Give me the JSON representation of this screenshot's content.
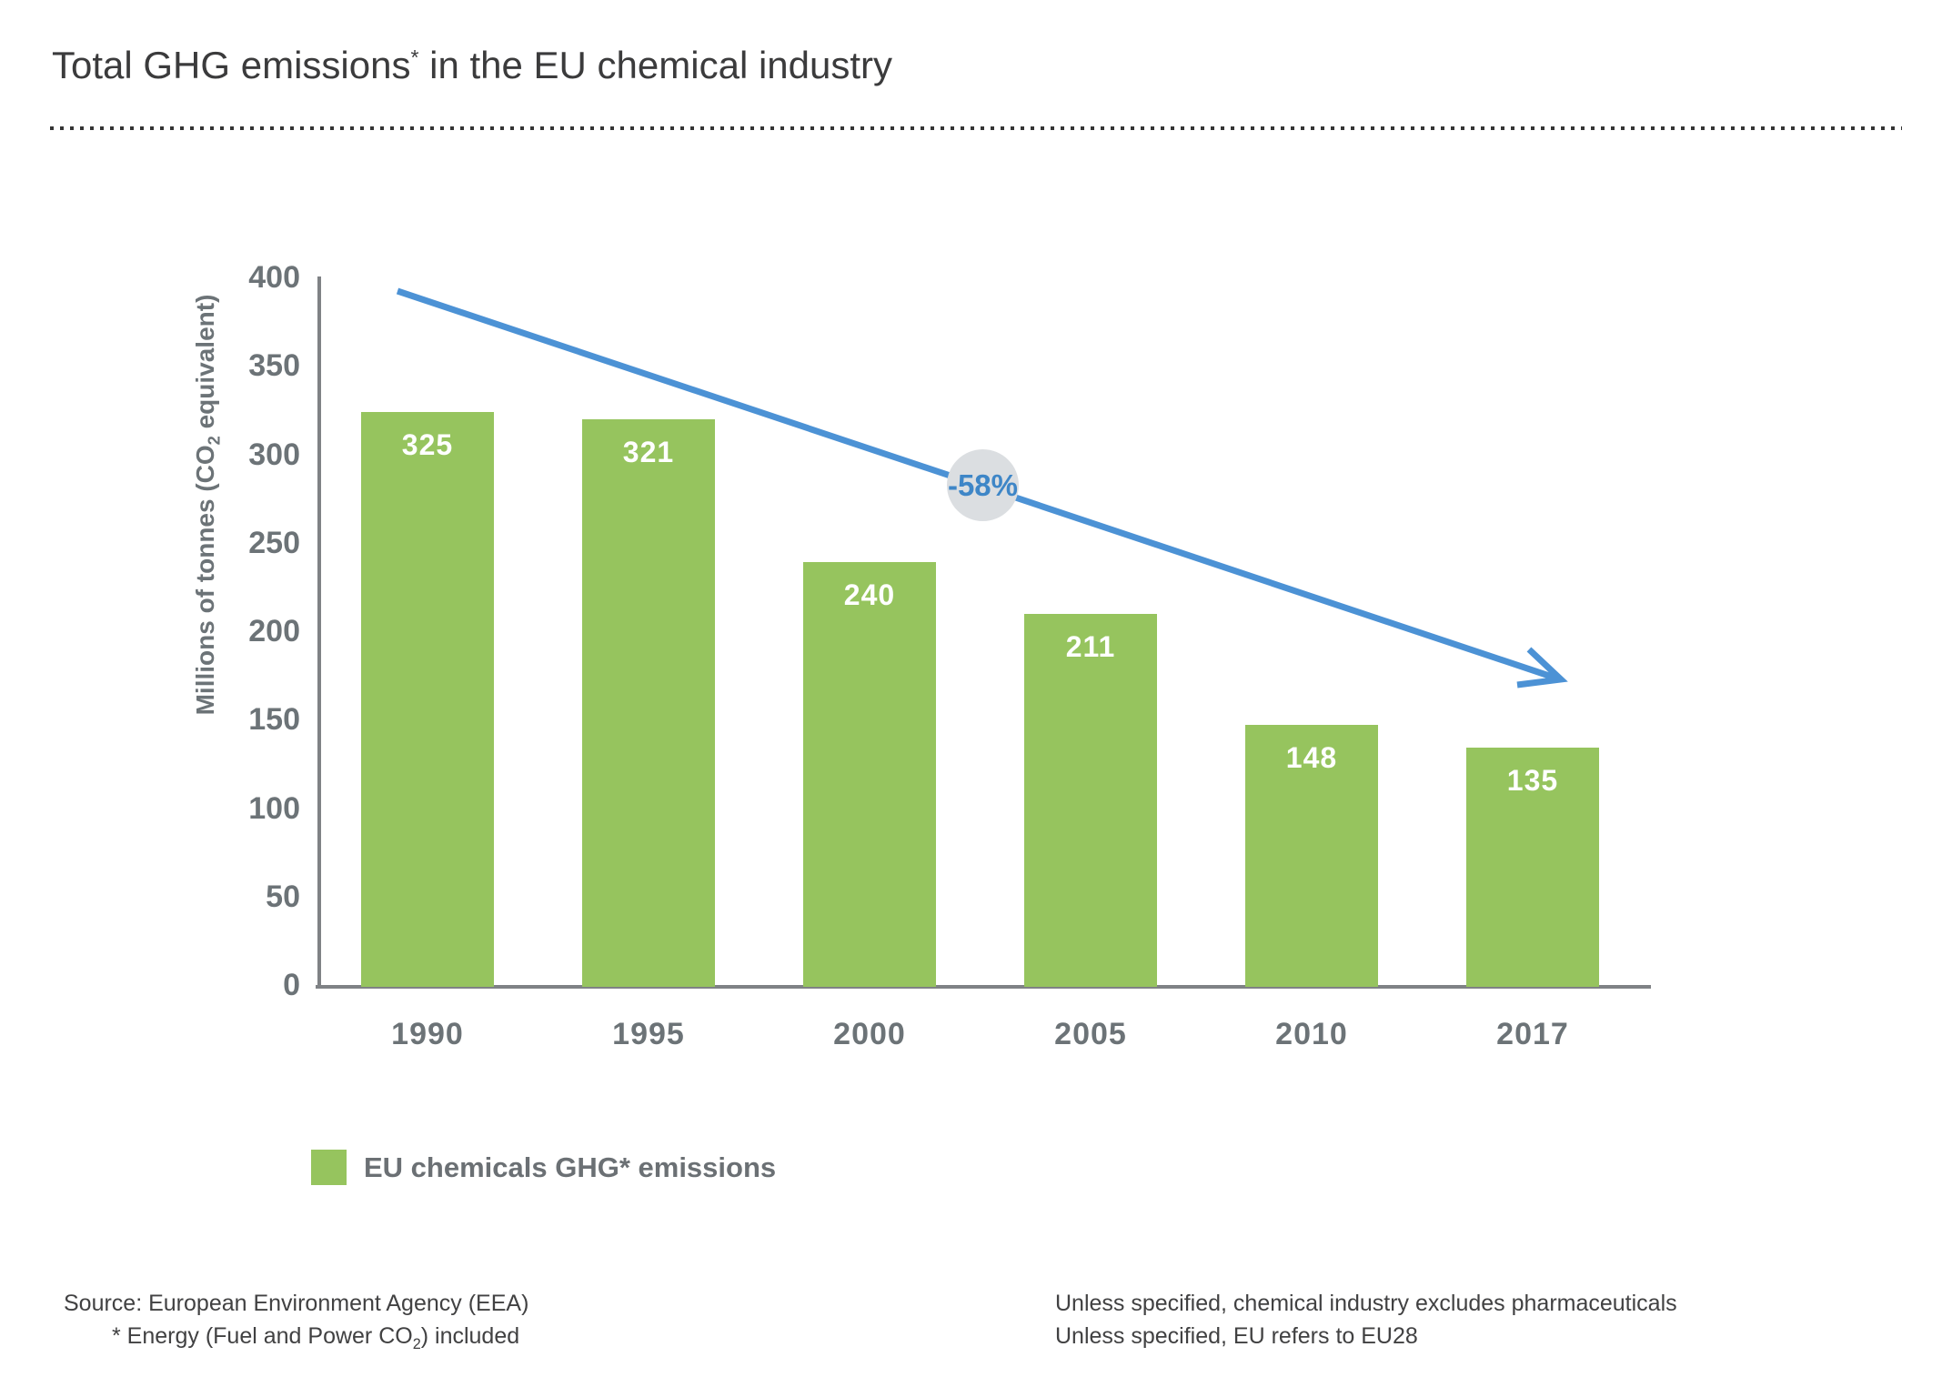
{
  "title": {
    "main": "Total GHG emissions",
    "asterisk": "*",
    "rest": " in the EU chemical industry"
  },
  "chart_data": {
    "type": "bar",
    "title": "Total GHG emissions* in the EU chemical industry",
    "categories": [
      "1990",
      "1995",
      "2000",
      "2005",
      "2010",
      "2017"
    ],
    "values": [
      325,
      321,
      240,
      211,
      148,
      135
    ],
    "series_name": "EU chemicals GHG* emissions",
    "xlabel": "",
    "ylabel": "Millions of tonnes (CO2 equivalent)",
    "ylabel_parts": {
      "pre": "Millions of tonnes (CO",
      "sub": "2",
      "post": " equivalent)"
    },
    "ylim": [
      0,
      400
    ],
    "yticks": [
      400,
      350,
      300,
      250,
      200,
      150,
      100,
      50,
      0
    ],
    "grid": false,
    "legend_position": "bottom-left",
    "annotation": {
      "label": "-58%",
      "type": "downward-trend-arrow"
    },
    "bar_color": "#96C45E",
    "arrow_color": "#4C92D5",
    "badge_bg": "#DBDEE1",
    "badge_text_color": "#3E86C7",
    "axis_color": "#7F8285",
    "tick_text_color": "#6C7377"
  },
  "legend": {
    "label": "EU chemicals GHG* emissions"
  },
  "footnotes": {
    "source": "Source: European Environment Agency (EEA)",
    "energy_note": {
      "pre": "* Energy (Fuel and Power CO",
      "sub": "2",
      "post": ") included"
    },
    "right_line1": "Unless specified, chemical industry excludes pharmaceuticals",
    "right_line2": "Unless specified, EU refers to EU28"
  }
}
